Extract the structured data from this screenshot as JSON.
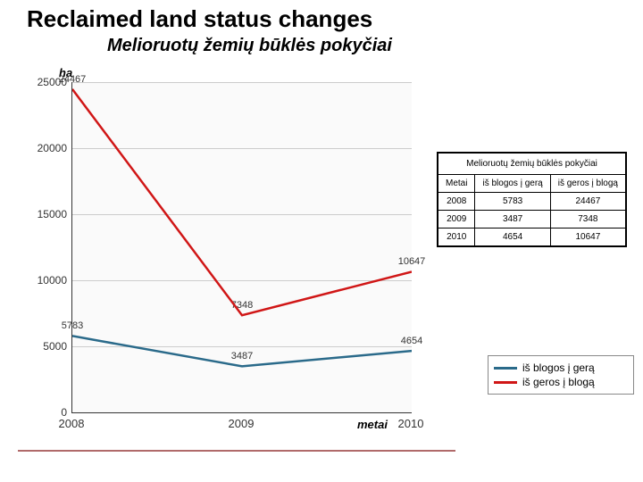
{
  "title_en": "Reclaimed land status changes",
  "title_lt": "Melioruotų žemių būklės pokyčiai",
  "yaxis_label": "ha",
  "xaxis_label": "metai",
  "chart": {
    "type": "line",
    "background_color": "#fafafa",
    "grid_color": "#cccccc",
    "axis_color": "#333333",
    "xlim": [
      2008,
      2010
    ],
    "ylim": [
      0,
      25000
    ],
    "ytick_step": 5000,
    "yticks": [
      0,
      5000,
      10000,
      15000,
      20000,
      25000
    ],
    "xticks": [
      2008,
      2009,
      2010
    ],
    "line_width": 2.5,
    "marker": "none",
    "label_fontsize": 11,
    "tick_fontsize": 12,
    "series": [
      {
        "name": "iš blogos į gerą",
        "color": "#2a6a8a",
        "values": [
          5783,
          3487,
          4654
        ]
      },
      {
        "name": "iš geros į blogą",
        "color": "#d01616",
        "values": [
          24467,
          7348,
          10647
        ]
      }
    ],
    "point_labels": {
      "blue": [
        "5783",
        "3487",
        "4654"
      ],
      "red": [
        "24467",
        "7348",
        "10647"
      ]
    }
  },
  "legend": {
    "title": "",
    "items": [
      {
        "label": "iš blogos į gerą",
        "color": "#2a6a8a"
      },
      {
        "label": "iš geros į blogą",
        "color": "#d01616"
      }
    ]
  },
  "table": {
    "title": "Melioruotų žemių būklės pokyčiai",
    "columns": [
      "Metai",
      "iš blogos į gerą",
      "iš geros į blogą"
    ],
    "rows": [
      [
        "2008",
        "5783",
        "24467"
      ],
      [
        "2009",
        "3487",
        "7348"
      ],
      [
        "2010",
        "4654",
        "10647"
      ]
    ]
  },
  "rule_color": "#b06a6a"
}
